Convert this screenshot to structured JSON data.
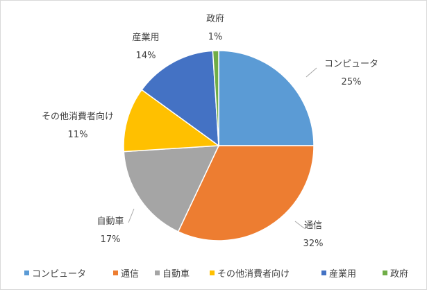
{
  "chart_data": {
    "type": "pie",
    "title": "",
    "start_angle_deg": 0,
    "direction": "clockwise",
    "legend_position": "bottom",
    "slices": [
      {
        "label": "コンピュータ",
        "value": 25,
        "value_label": "25%",
        "color": "#5b9bd5"
      },
      {
        "label": "通信",
        "value": 32,
        "value_label": "32%",
        "color": "#ed7d31"
      },
      {
        "label": "自動車",
        "value": 17,
        "value_label": "17%",
        "color": "#a5a5a5"
      },
      {
        "label": "その他消費者向け",
        "value": 11,
        "value_label": "11%",
        "color": "#ffc000"
      },
      {
        "label": "産業用",
        "value": 14,
        "value_label": "14%",
        "color": "#4472c4"
      },
      {
        "label": "政府",
        "value": 1,
        "value_label": "1%",
        "color": "#70ad47"
      }
    ]
  }
}
